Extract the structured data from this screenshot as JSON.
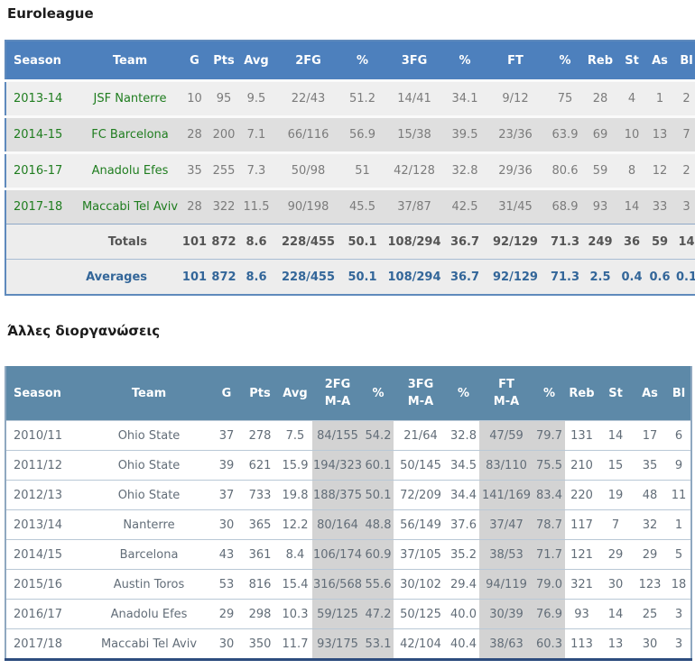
{
  "page": {
    "section1_title": "Euroleague",
    "section2_title": "Άλλες διοργανώσεις"
  },
  "colors": {
    "table1_header_bg": "#4d80bd",
    "table2_header_bg": "#5d89a8",
    "table1_row_light": "#efefef",
    "table1_row_dark": "#dfdfdf",
    "column_band_gray": "#d3d3d3",
    "team_link_green": "#1f7d1f",
    "stat_text_gray": "#7b7b7b",
    "totals_text": "#555555",
    "averages_text": "#336699",
    "table2_bottom_border": "#2d4c7e"
  },
  "table1": {
    "columns": [
      "Season",
      "Team",
      "G",
      "Pts",
      "Avg",
      "2FG",
      "%",
      "3FG",
      "%",
      "FT",
      "%",
      "Reb",
      "St",
      "As",
      "Bl"
    ],
    "link_columns": [
      0,
      1
    ],
    "rows": [
      [
        "2013-14",
        "JSF Nanterre",
        "10",
        "95",
        "9.5",
        "22/43",
        "51.2",
        "14/41",
        "34.1",
        "9/12",
        "75",
        "28",
        "4",
        "1",
        "2"
      ],
      [
        "2014-15",
        "FC Barcelona",
        "28",
        "200",
        "7.1",
        "66/116",
        "56.9",
        "15/38",
        "39.5",
        "23/36",
        "63.9",
        "69",
        "10",
        "13",
        "7"
      ],
      [
        "2016-17",
        "Anadolu Efes",
        "35",
        "255",
        "7.3",
        "50/98",
        "51",
        "42/128",
        "32.8",
        "29/36",
        "80.6",
        "59",
        "8",
        "12",
        "2"
      ],
      [
        "2017-18",
        "Maccabi Tel Aviv",
        "28",
        "322",
        "11.5",
        "90/198",
        "45.5",
        "37/87",
        "42.5",
        "31/45",
        "68.9",
        "93",
        "14",
        "33",
        "3"
      ]
    ],
    "totals_label": "Totals",
    "totals": [
      "101",
      "872",
      "8.6",
      "228/455",
      "50.1",
      "108/294",
      "36.7",
      "92/129",
      "71.3",
      "249",
      "36",
      "59",
      "14"
    ],
    "averages_label": "Averages",
    "averages": [
      "101",
      "872",
      "8.6",
      "228/455",
      "50.1",
      "108/294",
      "36.7",
      "92/129",
      "71.3",
      "2.5",
      "0.4",
      "0.6",
      "0.1"
    ]
  },
  "table2": {
    "columns": [
      [
        "Season"
      ],
      [
        "Team"
      ],
      [
        "G"
      ],
      [
        "Pts"
      ],
      [
        "Avg"
      ],
      [
        "2FG",
        "M-A"
      ],
      [
        "%"
      ],
      [
        "3FG",
        "M-A"
      ],
      [
        "%"
      ],
      [
        "FT",
        "M-A"
      ],
      [
        "%"
      ],
      [
        "Reb"
      ],
      [
        "St"
      ],
      [
        "As"
      ],
      [
        "Bl"
      ]
    ],
    "band_columns": [
      5,
      6,
      9,
      10
    ],
    "rows": [
      [
        "2010/11",
        "Ohio State",
        "37",
        "278",
        "7.5",
        "84/155",
        "54.2",
        "21/64",
        "32.8",
        "47/59",
        "79.7",
        "131",
        "14",
        "17",
        "6"
      ],
      [
        "2011/12",
        "Ohio State",
        "39",
        "621",
        "15.9",
        "194/323",
        "60.1",
        "50/145",
        "34.5",
        "83/110",
        "75.5",
        "210",
        "15",
        "35",
        "9"
      ],
      [
        "2012/13",
        "Ohio State",
        "37",
        "733",
        "19.8",
        "188/375",
        "50.1",
        "72/209",
        "34.4",
        "141/169",
        "83.4",
        "220",
        "19",
        "48",
        "11"
      ],
      [
        "2013/14",
        "Nanterre",
        "30",
        "365",
        "12.2",
        "80/164",
        "48.8",
        "56/149",
        "37.6",
        "37/47",
        "78.7",
        "117",
        "7",
        "32",
        "1"
      ],
      [
        "2014/15",
        "Barcelona",
        "43",
        "361",
        "8.4",
        "106/174",
        "60.9",
        "37/105",
        "35.2",
        "38/53",
        "71.7",
        "121",
        "29",
        "29",
        "5"
      ],
      [
        "2015/16",
        "Austin Toros",
        "53",
        "816",
        "15.4",
        "316/568",
        "55.6",
        "30/102",
        "29.4",
        "94/119",
        "79.0",
        "321",
        "30",
        "123",
        "18"
      ],
      [
        "2016/17",
        "Anadolu Efes",
        "29",
        "298",
        "10.3",
        "59/125",
        "47.2",
        "50/125",
        "40.0",
        "30/39",
        "76.9",
        "93",
        "14",
        "25",
        "3"
      ],
      [
        "2017/18",
        "Maccabi Tel Aviv",
        "30",
        "350",
        "11.7",
        "93/175",
        "53.1",
        "42/104",
        "40.4",
        "38/63",
        "60.3",
        "113",
        "13",
        "30",
        "3"
      ]
    ]
  }
}
